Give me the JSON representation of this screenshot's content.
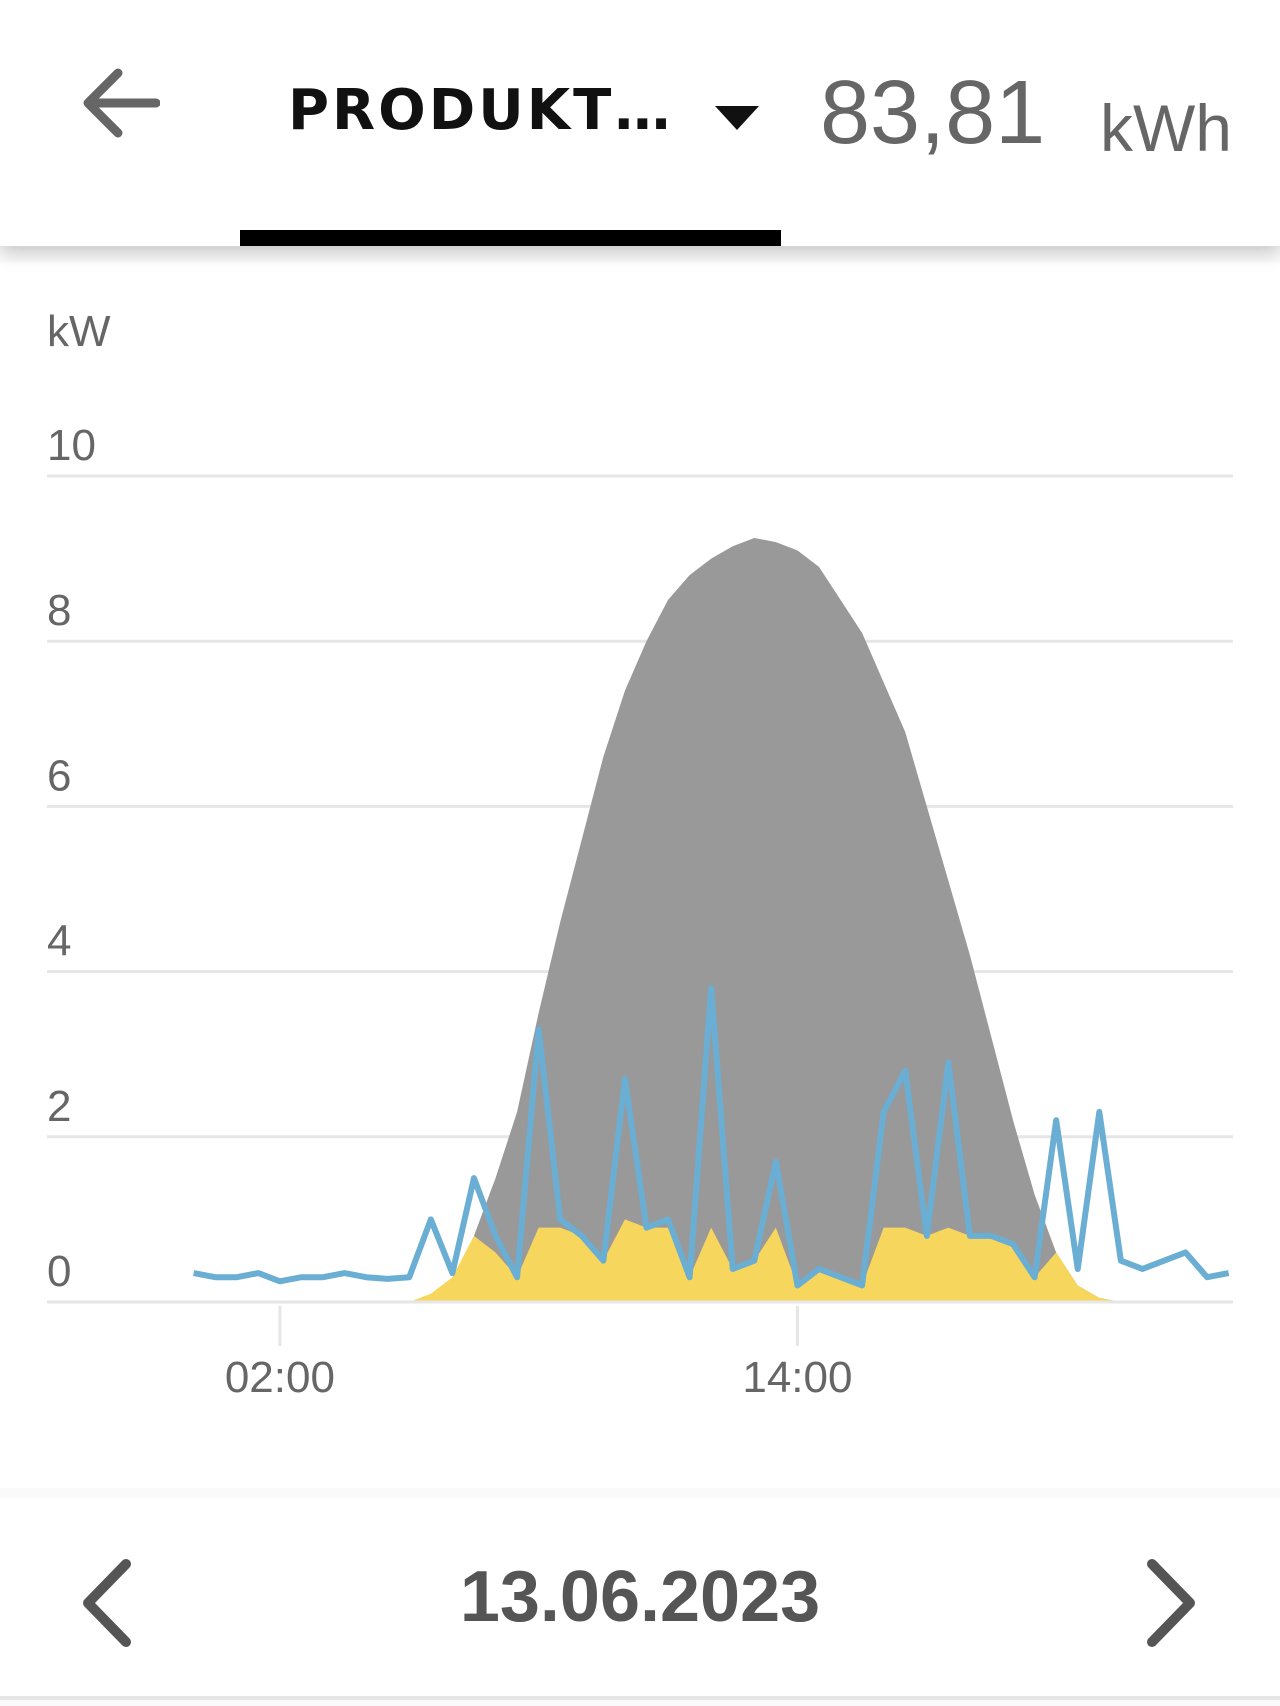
{
  "header": {
    "title": "PRODUKT…",
    "value": "83,81",
    "unit": "kWh"
  },
  "chart_data": {
    "type": "line",
    "y_label": "kW",
    "x": [
      0,
      0.5,
      1,
      1.5,
      2,
      2.5,
      3,
      3.5,
      4,
      4.5,
      5,
      5.5,
      6,
      6.5,
      7,
      7.5,
      8,
      8.5,
      9,
      9.5,
      10,
      10.5,
      11,
      11.5,
      12,
      12.5,
      13,
      13.5,
      14,
      14.5,
      15,
      15.5,
      16,
      16.5,
      17,
      17.5,
      18,
      18.5,
      19,
      19.5,
      20,
      20.5,
      21,
      21.5,
      22,
      22.5,
      23,
      23.5,
      24
    ],
    "series": [
      {
        "kind": "area",
        "color": "#999999",
        "values": [
          0,
          0,
          0,
          0,
          0,
          0,
          0,
          0,
          0,
          0,
          0,
          0,
          0.2,
          0.8,
          1.5,
          2.3,
          3.5,
          4.6,
          5.6,
          6.6,
          7.4,
          8.0,
          8.5,
          8.8,
          9.0,
          9.15,
          9.25,
          9.2,
          9.1,
          8.9,
          8.5,
          8.1,
          7.5,
          6.9,
          6.0,
          5.1,
          4.2,
          3.2,
          2.2,
          1.3,
          0.6,
          0.2,
          0.05,
          0,
          0,
          0,
          0,
          0,
          0
        ]
      },
      {
        "kind": "area",
        "color": "#f7d65e",
        "values": [
          0,
          0,
          0,
          0,
          0,
          0,
          0,
          0,
          0,
          0,
          0,
          0.1,
          0.3,
          0.8,
          0.6,
          0.3,
          0.9,
          0.9,
          0.8,
          0.5,
          1.0,
          0.9,
          0.9,
          0.3,
          0.9,
          0.4,
          0.5,
          0.9,
          0.2,
          0.4,
          0.3,
          0.2,
          0.9,
          0.9,
          0.8,
          0.9,
          0.8,
          0.8,
          0.7,
          0.3,
          0.6,
          0.2,
          0.05,
          0,
          0,
          0,
          0,
          0,
          0
        ]
      },
      {
        "kind": "line",
        "color": "#6aaed3",
        "values": [
          0.35,
          0.3,
          0.3,
          0.35,
          0.25,
          0.3,
          0.3,
          0.35,
          0.3,
          0.28,
          0.3,
          1.0,
          0.35,
          1.5,
          0.8,
          0.3,
          3.3,
          1.0,
          0.8,
          0.5,
          2.7,
          0.9,
          1.0,
          0.3,
          3.8,
          0.4,
          0.5,
          1.7,
          0.2,
          0.4,
          0.3,
          0.2,
          2.3,
          2.8,
          0.8,
          2.9,
          0.8,
          0.8,
          0.7,
          0.3,
          2.2,
          0.4,
          2.3,
          0.5,
          0.4,
          0.5,
          0.6,
          0.3,
          0.35
        ]
      }
    ],
    "xlim": [
      -3.4,
      24.1
    ],
    "xticks": [
      {
        "value": 2,
        "label": "02:00"
      },
      {
        "value": 14,
        "label": "14:00"
      }
    ],
    "ylim": [
      0,
      10
    ],
    "yticks": [
      0,
      2,
      4,
      6,
      8,
      10
    ],
    "grid": true
  },
  "footer": {
    "date": "13.06.2023"
  }
}
